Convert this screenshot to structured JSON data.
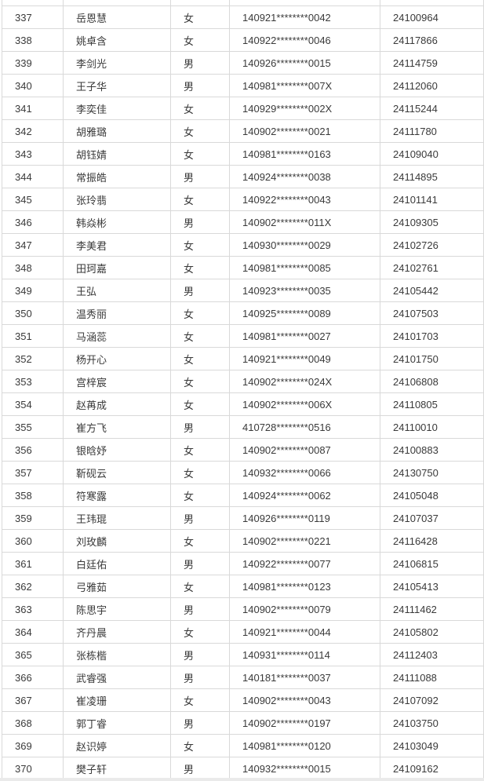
{
  "colors": {
    "border": "#d9d9d9",
    "text": "#3a3a3a",
    "row_background": "#ffffff",
    "bottom_strip": "#eaeaea"
  },
  "table": {
    "has_partial_clipped_row_top": true,
    "has_partial_clipped_row_bottom": true,
    "rows": [
      {
        "no": "337",
        "name": "岳恩慧",
        "gender": "女",
        "id": "140921********0042",
        "exam_no": "24100964"
      },
      {
        "no": "338",
        "name": "姚卓含",
        "gender": "女",
        "id": "140922********0046",
        "exam_no": "24117866"
      },
      {
        "no": "339",
        "name": "李剑光",
        "gender": "男",
        "id": "140926********0015",
        "exam_no": "24114759"
      },
      {
        "no": "340",
        "name": "王子华",
        "gender": "男",
        "id": "140981********007X",
        "exam_no": "24112060"
      },
      {
        "no": "341",
        "name": "李奕佳",
        "gender": "女",
        "id": "140929********002X",
        "exam_no": "24115244"
      },
      {
        "no": "342",
        "name": "胡雅璐",
        "gender": "女",
        "id": "140902********0021",
        "exam_no": "24111780"
      },
      {
        "no": "343",
        "name": "胡钰婧",
        "gender": "女",
        "id": "140981********0163",
        "exam_no": "24109040"
      },
      {
        "no": "344",
        "name": "常振皓",
        "gender": "男",
        "id": "140924********0038",
        "exam_no": "24114895"
      },
      {
        "no": "345",
        "name": "张玲翡",
        "gender": "女",
        "id": "140922********0043",
        "exam_no": "24101141"
      },
      {
        "no": "346",
        "name": "韩焱彬",
        "gender": "男",
        "id": "140902********011X",
        "exam_no": "24109305"
      },
      {
        "no": "347",
        "name": "李美君",
        "gender": "女",
        "id": "140930********0029",
        "exam_no": "24102726"
      },
      {
        "no": "348",
        "name": "田珂嘉",
        "gender": "女",
        "id": "140981********0085",
        "exam_no": "24102761"
      },
      {
        "no": "349",
        "name": "王弘",
        "gender": "男",
        "id": "140923********0035",
        "exam_no": "24105442"
      },
      {
        "no": "350",
        "name": "温秀丽",
        "gender": "女",
        "id": "140925********0089",
        "exam_no": "24107503"
      },
      {
        "no": "351",
        "name": "马涵蕊",
        "gender": "女",
        "id": "140981********0027",
        "exam_no": "24101703"
      },
      {
        "no": "352",
        "name": "杨开心",
        "gender": "女",
        "id": "140921********0049",
        "exam_no": "24101750"
      },
      {
        "no": "353",
        "name": "宫梓宸",
        "gender": "女",
        "id": "140902********024X",
        "exam_no": "24106808"
      },
      {
        "no": "354",
        "name": "赵苒成",
        "gender": "女",
        "id": "140902********006X",
        "exam_no": "24110805"
      },
      {
        "no": "355",
        "name": "崔方飞",
        "gender": "男",
        "id": "410728********0516",
        "exam_no": "24110010"
      },
      {
        "no": "356",
        "name": "银晗妤",
        "gender": "女",
        "id": "140902********0087",
        "exam_no": "24100883"
      },
      {
        "no": "357",
        "name": "靳砚云",
        "gender": "女",
        "id": "140932********0066",
        "exam_no": "24130750"
      },
      {
        "no": "358",
        "name": "符寒露",
        "gender": "女",
        "id": "140924********0062",
        "exam_no": "24105048"
      },
      {
        "no": "359",
        "name": "王玮琨",
        "gender": "男",
        "id": "140926********0119",
        "exam_no": "24107037"
      },
      {
        "no": "360",
        "name": "刘玫麟",
        "gender": "女",
        "id": "140902********0221",
        "exam_no": "24116428"
      },
      {
        "no": "361",
        "name": "白廷佑",
        "gender": "男",
        "id": "140922********0077",
        "exam_no": "24106815"
      },
      {
        "no": "362",
        "name": "弓雅茹",
        "gender": "女",
        "id": "140981********0123",
        "exam_no": "24105413"
      },
      {
        "no": "363",
        "name": "陈思宇",
        "gender": "男",
        "id": "140902********0079",
        "exam_no": "24111462"
      },
      {
        "no": "364",
        "name": "齐丹晨",
        "gender": "女",
        "id": "140921********0044",
        "exam_no": "24105802"
      },
      {
        "no": "365",
        "name": "张栋楷",
        "gender": "男",
        "id": "140931********0114",
        "exam_no": "24112403"
      },
      {
        "no": "366",
        "name": "武睿强",
        "gender": "男",
        "id": "140181********0037",
        "exam_no": "24111088"
      },
      {
        "no": "367",
        "name": "崔凌珊",
        "gender": "女",
        "id": "140902********0043",
        "exam_no": "24107092"
      },
      {
        "no": "368",
        "name": "郭丁睿",
        "gender": "男",
        "id": "140902********0197",
        "exam_no": "24103750"
      },
      {
        "no": "369",
        "name": "赵识婷",
        "gender": "女",
        "id": "140981********0120",
        "exam_no": "24103049"
      },
      {
        "no": "370",
        "name": "樊子轩",
        "gender": "男",
        "id": "140932********0015",
        "exam_no": "24109162"
      }
    ]
  }
}
